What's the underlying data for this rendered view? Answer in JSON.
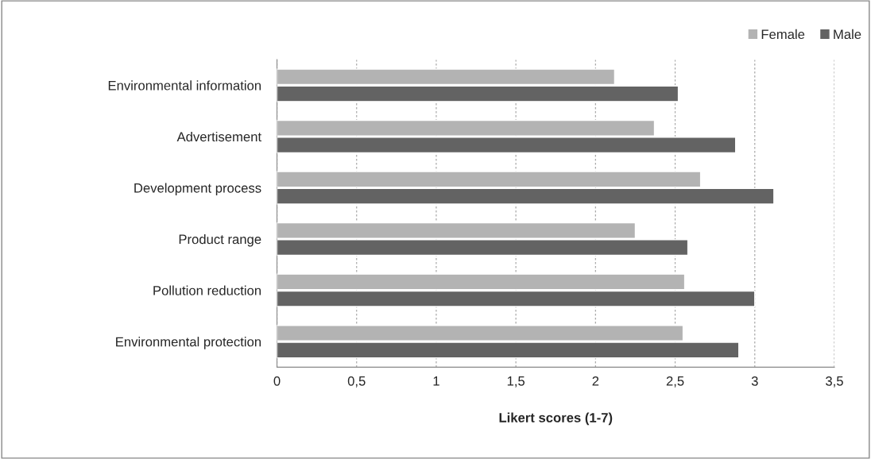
{
  "chart_data": {
    "type": "bar",
    "orientation": "horizontal",
    "xlabel": "Likert scores (1-7)",
    "categories": [
      "Environmental information",
      "Advertisement",
      "Development process",
      "Product range",
      "Pollution reduction",
      "Environmental protection"
    ],
    "series": [
      {
        "name": "Female",
        "color": "#b3b3b3",
        "values": [
          2.12,
          2.37,
          2.66,
          2.25,
          2.56,
          2.55
        ]
      },
      {
        "name": "Male",
        "color": "#636363",
        "values": [
          2.52,
          2.88,
          3.12,
          2.58,
          3.0,
          2.9
        ]
      }
    ],
    "xlim": [
      0,
      3.5
    ],
    "xticks": [
      0,
      {
        "value": 0.5,
        "label": "0,5"
      },
      1,
      {
        "value": 1.5,
        "label": "1,5"
      },
      2,
      {
        "value": 2.5,
        "label": "2,5"
      },
      3,
      {
        "value": 3.5,
        "label": "3,5"
      }
    ],
    "grid": "x",
    "legend": "top right"
  }
}
